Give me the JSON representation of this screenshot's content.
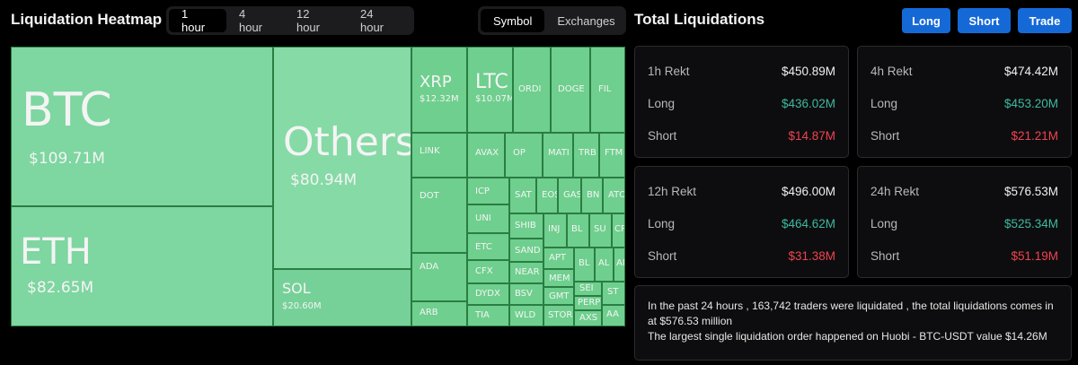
{
  "header": {
    "title": "Liquidation Heatmap",
    "time_tabs": [
      "1 hour",
      "4 hour",
      "12 hour",
      "24 hour"
    ],
    "active_time_tab": "1 hour",
    "view_tabs": [
      "Symbol",
      "Exchanges"
    ],
    "active_view_tab": "Symbol"
  },
  "panel": {
    "title": "Total Liquidations",
    "buttons": {
      "long": "Long",
      "short": "Short",
      "trade": "Trade"
    }
  },
  "heatmap": {
    "tiles": [
      {
        "sym": "BTC",
        "val": "$109.71M"
      },
      {
        "sym": "Others",
        "val": "$80.94M"
      },
      {
        "sym": "ETH",
        "val": "$82.65M"
      },
      {
        "sym": "SOL",
        "val": "$20.60M"
      },
      {
        "sym": "XRP",
        "val": "$12.32M"
      },
      {
        "sym": "LTC",
        "val": "$10.07M"
      },
      {
        "sym": "ORDI",
        "val": ""
      },
      {
        "sym": "DOGE",
        "val": ""
      },
      {
        "sym": "FIL",
        "val": ""
      },
      {
        "sym": "LINK",
        "val": ""
      },
      {
        "sym": "AVAX",
        "val": ""
      },
      {
        "sym": "OP",
        "val": ""
      },
      {
        "sym": "MATI",
        "val": ""
      },
      {
        "sym": "TRB",
        "val": ""
      },
      {
        "sym": "FTM",
        "val": ""
      },
      {
        "sym": "DOT",
        "val": ""
      },
      {
        "sym": "ICP",
        "val": ""
      },
      {
        "sym": "SAT",
        "val": ""
      },
      {
        "sym": "EOS",
        "val": ""
      },
      {
        "sym": "GAS",
        "val": ""
      },
      {
        "sym": "BN",
        "val": ""
      },
      {
        "sym": "ATO",
        "val": ""
      },
      {
        "sym": "UNI",
        "val": ""
      },
      {
        "sym": "ADA",
        "val": ""
      },
      {
        "sym": "ETC",
        "val": ""
      },
      {
        "sym": "SHIB",
        "val": ""
      },
      {
        "sym": "INJ",
        "val": ""
      },
      {
        "sym": "BL",
        "val": ""
      },
      {
        "sym": "SU",
        "val": ""
      },
      {
        "sym": "CR",
        "val": ""
      },
      {
        "sym": "SAND",
        "val": ""
      },
      {
        "sym": "BCH",
        "val": ""
      },
      {
        "sym": "CFX",
        "val": ""
      },
      {
        "sym": "APT",
        "val": ""
      },
      {
        "sym": "BL",
        "val": ""
      },
      {
        "sym": "AL",
        "val": ""
      },
      {
        "sym": "AI",
        "val": ""
      },
      {
        "sym": "NEAR",
        "val": ""
      },
      {
        "sym": "MEM",
        "val": ""
      },
      {
        "sym": "DYDX",
        "val": ""
      },
      {
        "sym": "BSV",
        "val": ""
      },
      {
        "sym": "GMT",
        "val": ""
      },
      {
        "sym": "SEI",
        "val": ""
      },
      {
        "sym": "ST",
        "val": ""
      },
      {
        "sym": "ARB",
        "val": ""
      },
      {
        "sym": "PERP",
        "val": ""
      },
      {
        "sym": "TIA",
        "val": ""
      },
      {
        "sym": "WLD",
        "val": ""
      },
      {
        "sym": "STOR",
        "val": ""
      },
      {
        "sym": "AXS",
        "val": ""
      },
      {
        "sym": "AA",
        "val": ""
      }
    ]
  },
  "stats": [
    {
      "period": "1h Rekt",
      "total": "$450.89M",
      "long_label": "Long",
      "long": "$436.02M",
      "short_label": "Short",
      "short": "$14.87M"
    },
    {
      "period": "4h Rekt",
      "total": "$474.42M",
      "long_label": "Long",
      "long": "$453.20M",
      "short_label": "Short",
      "short": "$21.21M"
    },
    {
      "period": "12h Rekt",
      "total": "$496.00M",
      "long_label": "Long",
      "long": "$464.62M",
      "short_label": "Short",
      "short": "$31.38M"
    },
    {
      "period": "24h Rekt",
      "total": "$576.53M",
      "long_label": "Long",
      "long": "$525.34M",
      "short_label": "Short",
      "short": "$51.19M"
    }
  ],
  "summary": {
    "line1": "In the past 24 hours , 163,742 traders were liquidated , the total liquidations comes in at $576.53 million",
    "line2": "The largest single liquidation order happened on Huobi - BTC-USDT value $14.26M"
  },
  "colors": {
    "tile_green": "#6fcf8e",
    "long_value": "#3fb9a0",
    "short_value": "#f0434f",
    "button_blue": "#1569d6"
  }
}
